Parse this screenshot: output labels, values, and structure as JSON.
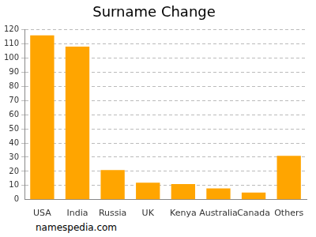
{
  "chart_data": {
    "type": "bar",
    "title": "Surname Change",
    "categories": [
      "USA",
      "India",
      "Russia",
      "UK",
      "Kenya",
      "Australia",
      "Canada",
      "Others"
    ],
    "values": [
      116,
      108,
      21,
      12,
      11,
      8,
      5,
      31
    ],
    "color": "#ffa500",
    "ylim": [
      0,
      120
    ],
    "yticks": [
      0,
      10,
      20,
      30,
      40,
      50,
      60,
      70,
      80,
      90,
      100,
      110,
      120
    ],
    "grid": true,
    "annotations": [
      "namespedia.com"
    ]
  }
}
